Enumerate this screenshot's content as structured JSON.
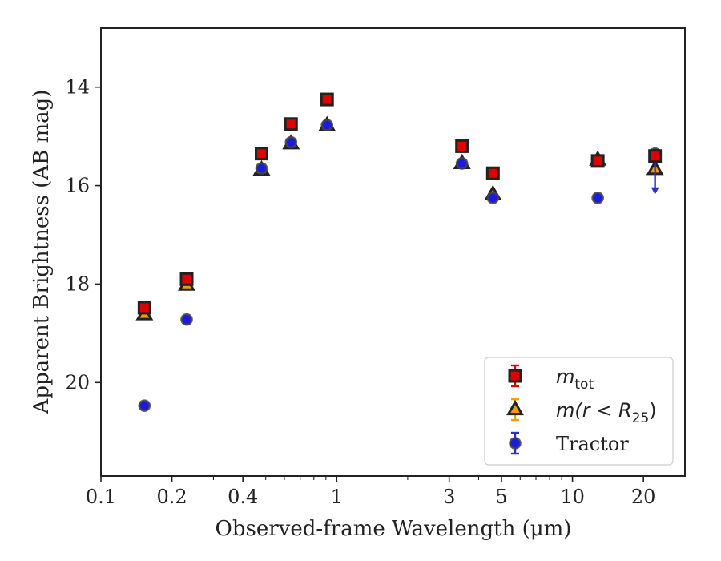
{
  "chart_data": {
    "type": "scatter",
    "xscale": "log",
    "yaxis_inverted": true,
    "xlim": [
      0.1,
      30
    ],
    "ylim": [
      21.9,
      12.8
    ],
    "xlabel": "Observed-frame Wavelength (μm)",
    "ylabel": "Apparent Brightness (AB mag)",
    "x_ticks": [
      {
        "value": 0.1,
        "label": "0.1"
      },
      {
        "value": 0.2,
        "label": "0.2"
      },
      {
        "value": 0.4,
        "label": "0.4"
      },
      {
        "value": 1,
        "label": "1"
      },
      {
        "value": 3,
        "label": "3"
      },
      {
        "value": 5,
        "label": "5"
      },
      {
        "value": 10,
        "label": "10"
      },
      {
        "value": 20,
        "label": "20"
      }
    ],
    "y_ticks": [
      {
        "value": 14,
        "label": "14"
      },
      {
        "value": 16,
        "label": "16"
      },
      {
        "value": 18,
        "label": "18"
      },
      {
        "value": 20,
        "label": "20"
      }
    ],
    "legend_position": "lower-right",
    "series": [
      {
        "name": "m_tot",
        "legend_main": "m",
        "legend_sub": "tot",
        "legend_tail": "",
        "marker": "square",
        "fill": "#e00000",
        "edge": "#222222",
        "errcolor": "#e00000",
        "points": [
          {
            "x": 0.153,
            "y": 18.48
          },
          {
            "x": 0.231,
            "y": 17.9
          },
          {
            "x": 0.48,
            "y": 15.35
          },
          {
            "x": 0.64,
            "y": 14.75
          },
          {
            "x": 0.91,
            "y": 14.25
          },
          {
            "x": 3.4,
            "y": 15.2
          },
          {
            "x": 4.6,
            "y": 15.75
          },
          {
            "x": 12.8,
            "y": 15.5
          },
          {
            "x": 22.4,
            "y": 15.4
          }
        ]
      },
      {
        "name": "m(r < R_25)",
        "legend_main": "m(r < R",
        "legend_sub": "25",
        "legend_tail": ")",
        "marker": "triangle",
        "fill": "#f39c00",
        "edge": "#222222",
        "errcolor": "#f0a000",
        "points": [
          {
            "x": 0.153,
            "y": 18.62
          },
          {
            "x": 0.231,
            "y": 18.02
          },
          {
            "x": 0.48,
            "y": 15.68
          },
          {
            "x": 0.64,
            "y": 15.15
          },
          {
            "x": 0.91,
            "y": 14.78
          },
          {
            "x": 3.4,
            "y": 15.55
          },
          {
            "x": 4.6,
            "y": 16.18
          },
          {
            "x": 12.8,
            "y": 15.48
          },
          {
            "x": 22.4,
            "y": 15.67
          }
        ]
      },
      {
        "name": "Tractor",
        "legend_main": "Tractor",
        "legend_sub": "",
        "legend_tail": "",
        "marker": "circle",
        "fill": "#1a1ae6",
        "edge": "#444444",
        "errcolor": "#2a2ae0",
        "points": [
          {
            "x": 0.153,
            "y": 20.47
          },
          {
            "x": 0.231,
            "y": 18.72
          },
          {
            "x": 0.48,
            "y": 15.65
          },
          {
            "x": 0.64,
            "y": 15.12
          },
          {
            "x": 0.91,
            "y": 14.77
          },
          {
            "x": 3.4,
            "y": 15.55
          },
          {
            "x": 4.6,
            "y": 16.25
          },
          {
            "x": 12.8,
            "y": 16.25
          },
          {
            "x": 22.4,
            "y": 15.35,
            "upper_limit_to": 16.15
          }
        ]
      }
    ]
  }
}
